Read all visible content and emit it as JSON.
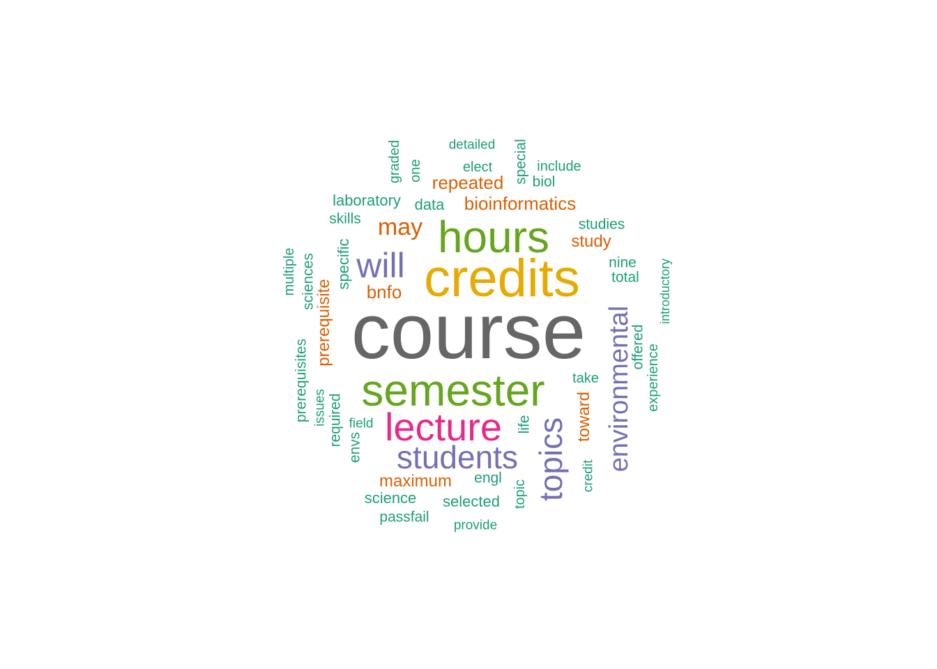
{
  "palette": {
    "c1": "#1b9e77",
    "c2": "#d95f02",
    "c3": "#7570b3",
    "c4": "#e7298a",
    "c5": "#66a61e",
    "c6": "#e6ab02",
    "c7": "#666666"
  },
  "words": [
    {
      "text": "course",
      "color": "c7",
      "vertical": false
    },
    {
      "text": "credits",
      "color": "c6",
      "vertical": false
    },
    {
      "text": "hours",
      "color": "c5",
      "vertical": false
    },
    {
      "text": "semester",
      "color": "c5",
      "vertical": false
    },
    {
      "text": "lecture",
      "color": "c4",
      "vertical": false
    },
    {
      "text": "students",
      "color": "c3",
      "vertical": false
    },
    {
      "text": "will",
      "color": "c3",
      "vertical": false
    },
    {
      "text": "topics",
      "color": "c3",
      "vertical": true
    },
    {
      "text": "environmental",
      "color": "c3",
      "vertical": true
    },
    {
      "text": "may",
      "color": "c2",
      "vertical": false
    },
    {
      "text": "bioinformatics",
      "color": "c2",
      "vertical": false
    },
    {
      "text": "repeated",
      "color": "c2",
      "vertical": false
    },
    {
      "text": "study",
      "color": "c2",
      "vertical": false
    },
    {
      "text": "bnfo",
      "color": "c2",
      "vertical": false
    },
    {
      "text": "prerequisite",
      "color": "c2",
      "vertical": true
    },
    {
      "text": "toward",
      "color": "c2",
      "vertical": true
    },
    {
      "text": "maximum",
      "color": "c2",
      "vertical": false
    },
    {
      "text": "laboratory",
      "color": "c1",
      "vertical": false
    },
    {
      "text": "data",
      "color": "c1",
      "vertical": false
    },
    {
      "text": "skills",
      "color": "c1",
      "vertical": false
    },
    {
      "text": "studies",
      "color": "c1",
      "vertical": false
    },
    {
      "text": "nine",
      "color": "c1",
      "vertical": false
    },
    {
      "text": "total",
      "color": "c1",
      "vertical": false
    },
    {
      "text": "detailed",
      "color": "c1",
      "vertical": false
    },
    {
      "text": "elect",
      "color": "c1",
      "vertical": false
    },
    {
      "text": "include",
      "color": "c1",
      "vertical": false
    },
    {
      "text": "biol",
      "color": "c1",
      "vertical": false
    },
    {
      "text": "graded",
      "color": "c1",
      "vertical": true
    },
    {
      "text": "one",
      "color": "c1",
      "vertical": true
    },
    {
      "text": "special",
      "color": "c1",
      "vertical": true
    },
    {
      "text": "multiple",
      "color": "c1",
      "vertical": true
    },
    {
      "text": "sciences",
      "color": "c1",
      "vertical": true
    },
    {
      "text": "specific",
      "color": "c1",
      "vertical": true
    },
    {
      "text": "introductory",
      "color": "c1",
      "vertical": true
    },
    {
      "text": "offered",
      "color": "c1",
      "vertical": true
    },
    {
      "text": "experience",
      "color": "c1",
      "vertical": true
    },
    {
      "text": "take",
      "color": "c1",
      "vertical": false
    },
    {
      "text": "prerequisites",
      "color": "c1",
      "vertical": true
    },
    {
      "text": "issues",
      "color": "c1",
      "vertical": true
    },
    {
      "text": "required",
      "color": "c1",
      "vertical": true
    },
    {
      "text": "field",
      "color": "c1",
      "vertical": false
    },
    {
      "text": "envs",
      "color": "c1",
      "vertical": true
    },
    {
      "text": "life",
      "color": "c1",
      "vertical": true
    },
    {
      "text": "credit",
      "color": "c1",
      "vertical": true
    },
    {
      "text": "engl",
      "color": "c1",
      "vertical": false
    },
    {
      "text": "topic",
      "color": "c1",
      "vertical": true
    },
    {
      "text": "science",
      "color": "c1",
      "vertical": false
    },
    {
      "text": "selected",
      "color": "c1",
      "vertical": false
    },
    {
      "text": "passfail",
      "color": "c1",
      "vertical": false
    },
    {
      "text": "provide",
      "color": "c1",
      "vertical": false
    }
  ]
}
